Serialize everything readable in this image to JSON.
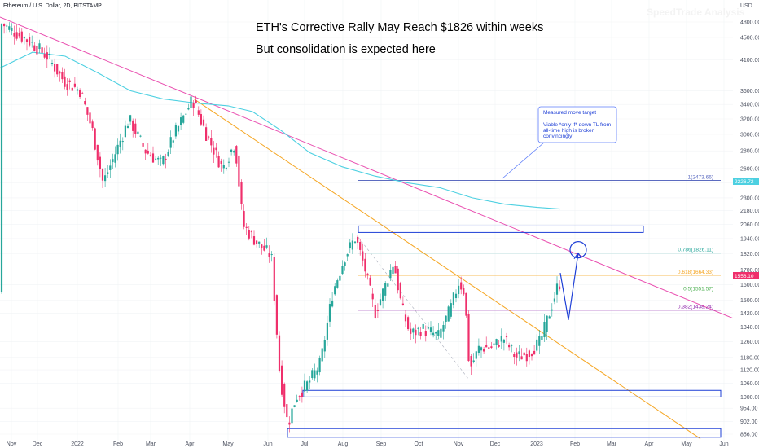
{
  "header": {
    "symbol": "Ethereum / U.S. Dollar, 2D, BITSTAMP",
    "watermark": "SpeedTrade Analysis"
  },
  "annotations": {
    "headline": "ETH's Corrective Rally May Reach $1826 within weeks",
    "subheadline": "But consolidation is expected here",
    "callout_title": "Measured move target",
    "callout_lines": [
      "Viable *only if* down TL from",
      "all-time  high is broken",
      "convincingly"
    ]
  },
  "colors": {
    "bull": "#26a69a",
    "bear": "#ef2f6b",
    "ma": "#4dd0e1",
    "trend_pink": "#e94fb0",
    "trend_orange": "#f5a623",
    "zone": "#1e3fd6",
    "fib_1": "#5c6bc0",
    "fib_786": "#26a69a",
    "fib_618": "#f5a623",
    "fib_05": "#4caf50",
    "fib_382": "#8e24aa",
    "projection": "#1e3fd6"
  },
  "chart_data": {
    "type": "line",
    "title": "ETH's Corrective Rally May Reach $1826 within weeks",
    "subtitle": "But consolidation is expected here",
    "series_style": "candlestick",
    "x_axis_labels": [
      "Nov",
      "Dec",
      "2022",
      "Feb",
      "Mar",
      "Apr",
      "May",
      "Jun",
      "Jul",
      "Aug",
      "Sep",
      "Oct",
      "Nov",
      "Dec",
      "2023",
      "Feb",
      "Mar",
      "Apr",
      "May",
      "Jun"
    ],
    "y_axis_unit": "USD",
    "y_axis_scale": "log",
    "y_ticks": [
      4800,
      4500,
      4100,
      3600,
      3400,
      3200,
      3000,
      2800,
      2600,
      2450,
      2300,
      2180,
      2060,
      1940,
      1820,
      1700,
      1600,
      1500,
      1420,
      1340,
      1260,
      1180,
      1120,
      1060,
      1000,
      954,
      902,
      856
    ],
    "current_price": "1556.10",
    "ma_price_tag": "2226.72",
    "price_path_key": [
      [
        "Nov",
        4780
      ],
      [
        "Dec",
        4100
      ],
      [
        "2022",
        3700
      ],
      [
        "Jan",
        2450
      ],
      [
        "Feb",
        3200
      ],
      [
        "Mar",
        2650
      ],
      [
        "Apr",
        3480
      ],
      [
        "May",
        2000
      ],
      [
        "Jun",
        1100
      ],
      [
        "Jun",
        890
      ],
      [
        "Jul",
        1050
      ],
      [
        "Aug",
        1950
      ],
      [
        "Sep",
        1420
      ],
      [
        "Sep",
        1760
      ],
      [
        "Oct",
        1280
      ],
      [
        "Oct",
        1330
      ],
      [
        "Nov",
        1620
      ],
      [
        "Nov",
        1080
      ],
      [
        "Dec",
        1220
      ],
      [
        "2023",
        1200
      ],
      [
        "Jan",
        1600
      ]
    ],
    "fib_levels": [
      {
        "label": "1(2473.66)",
        "value": 2473.66
      },
      {
        "label": "0.786(1826.11)",
        "value": 1826.11
      },
      {
        "label": "0.618(1664.33)",
        "value": 1664.33
      },
      {
        "label": "0.5(1551.57)",
        "value": 1551.57
      },
      {
        "label": "0.382(1438.24)",
        "value": 1438.24
      }
    ],
    "zones": [
      {
        "low": 1990,
        "high": 2045
      },
      {
        "low": 1000,
        "high": 1028
      },
      {
        "low": 845,
        "high": 876
      }
    ],
    "target": 1826
  }
}
